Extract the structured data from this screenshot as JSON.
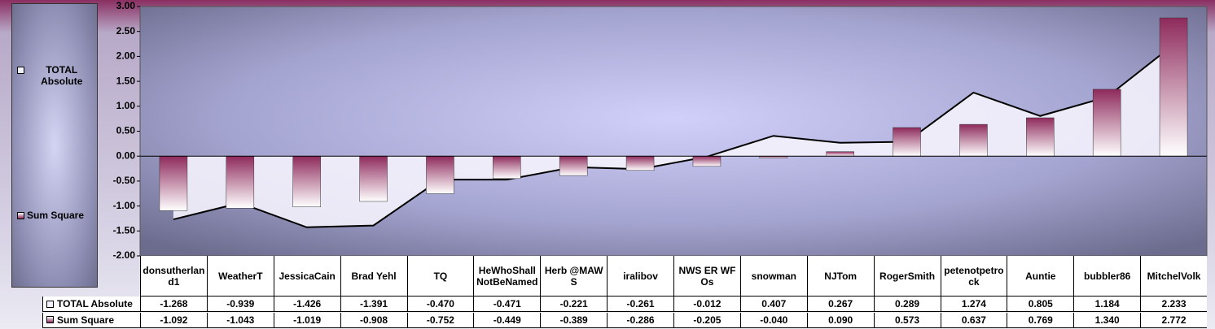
{
  "chart_data": {
    "type": "bar",
    "categories": [
      "donsutherland1",
      "WeatherT",
      "JessicaCain",
      "Brad Yehl",
      "TQ",
      "HeWhoShallNotBeNamed",
      "Herb @MAWS",
      "iralibov",
      "NWS ER WFOs",
      "snowman",
      "NJTom",
      "RogerSmith",
      "petenotpetrock",
      "Auntie",
      "bubbler86",
      "MitchelVolk"
    ],
    "series": [
      {
        "name": "TOTAL Absolute",
        "type": "area",
        "color": "#f4f2fc",
        "values": [
          -1.268,
          -0.939,
          -1.426,
          -1.391,
          -0.47,
          -0.471,
          -0.221,
          -0.261,
          -0.012,
          0.407,
          0.267,
          0.289,
          1.274,
          0.805,
          1.184,
          2.233
        ],
        "value_labels": [
          "-1.268",
          "-0.939",
          "-1.426",
          "-1.391",
          "-0.470",
          "-0.471",
          "-0.221",
          "-0.261",
          "-0.012",
          "0.407",
          "0.267",
          "0.289",
          "1.274",
          "0.805",
          "1.184",
          "2.233"
        ]
      },
      {
        "name": "Sum Square",
        "type": "bar",
        "color": "#8e2a5c",
        "values": [
          -1.092,
          -1.043,
          -1.019,
          -0.908,
          -0.752,
          -0.449,
          -0.389,
          -0.286,
          -0.205,
          -0.04,
          0.09,
          0.573,
          0.637,
          0.769,
          1.34,
          2.772
        ],
        "value_labels": [
          "-1.092",
          "-1.043",
          "-1.019",
          "-0.908",
          "-0.752",
          "-0.449",
          "-0.389",
          "-0.286",
          "-0.205",
          "-0.040",
          "0.090",
          "0.573",
          "0.637",
          "0.769",
          "1.340",
          "2.772"
        ]
      }
    ],
    "ylim": [
      -2,
      3
    ],
    "yticks": [
      {
        "value": -2,
        "label": "-2.00"
      },
      {
        "value": -1.5,
        "label": "-1.50"
      },
      {
        "value": -1,
        "label": "-1.00"
      },
      {
        "value": -0.5,
        "label": "-0.50"
      },
      {
        "value": 0,
        "label": "0.00"
      },
      {
        "value": 0.5,
        "label": "0.50"
      },
      {
        "value": 1,
        "label": "1.00"
      },
      {
        "value": 1.5,
        "label": "1.50"
      },
      {
        "value": 2,
        "label": "2.00"
      },
      {
        "value": 2.5,
        "label": "2.50"
      },
      {
        "value": 3,
        "label": "3.00"
      }
    ],
    "grid": false
  }
}
